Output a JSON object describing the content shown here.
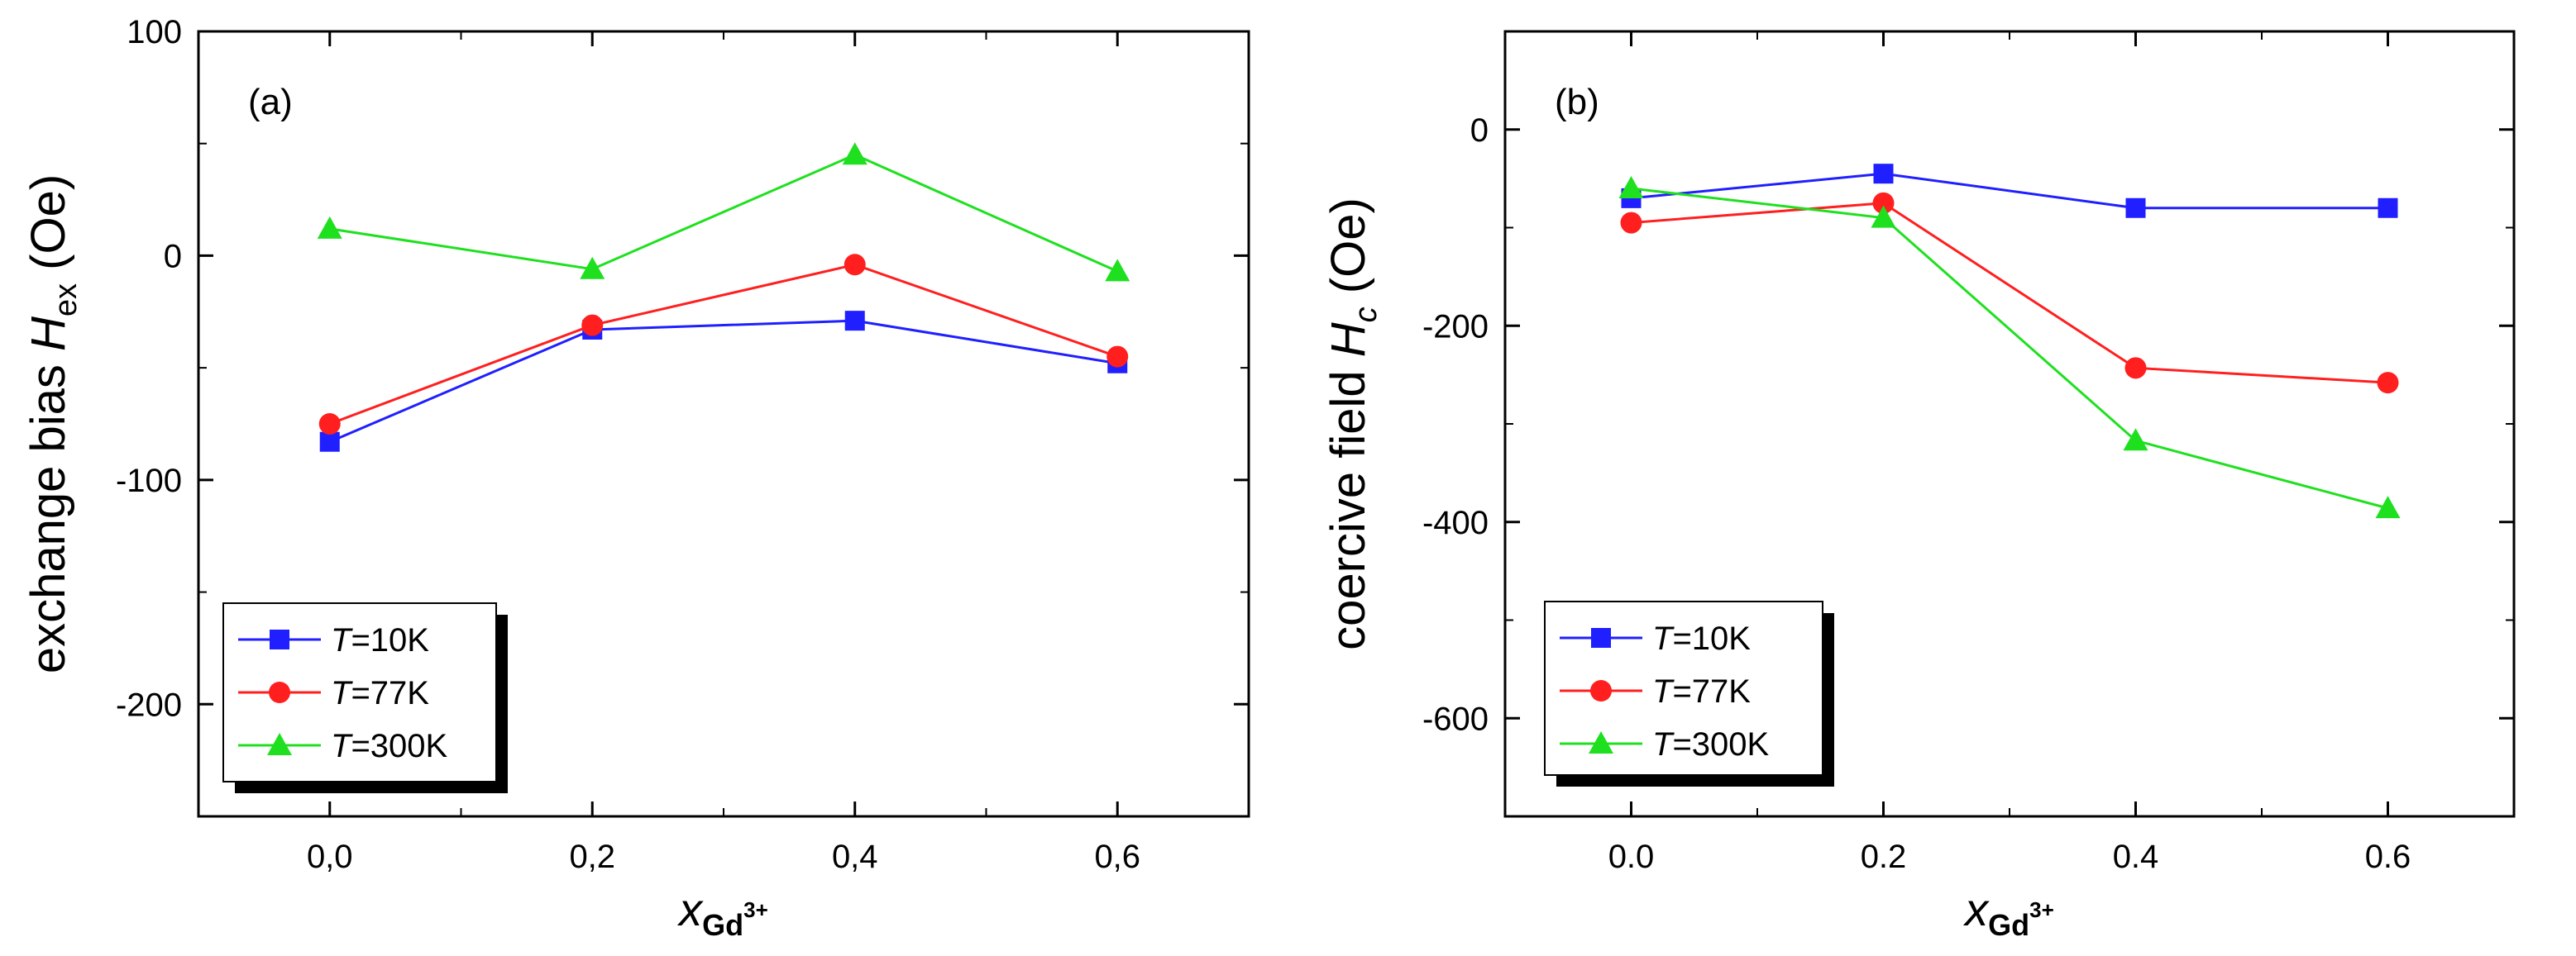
{
  "chart_data": [
    {
      "type": "line",
      "panel_label": "(a)",
      "ylabel_main": "exchange bias ",
      "ylabel_italic": "H",
      "ylabel_sub": "ex",
      "ylabel_unit": " (Oe)",
      "xlabel_main": "x",
      "xlabel_sub": "Gd",
      "xlabel_sup": "3+",
      "x_ticks": [
        "0,0",
        "0,2",
        "0,4",
        "0,6"
      ],
      "y_ticks": [
        "100",
        "0",
        "-100",
        "-200"
      ],
      "xlim": [
        -0.1,
        0.7
      ],
      "ylim": [
        -250,
        100
      ],
      "grid": false,
      "legend_position": "bottom-left",
      "x": [
        0.0,
        0.2,
        0.4,
        0.6
      ],
      "series": [
        {
          "name_italic": "T",
          "name_rest": "=10K",
          "color": "#1f1fff",
          "marker": "square",
          "values": [
            -83,
            -33,
            -29,
            -48
          ]
        },
        {
          "name_italic": "T",
          "name_rest": "=77K",
          "color": "#ff1f1f",
          "marker": "circle",
          "values": [
            -75,
            -31,
            -4,
            -45
          ]
        },
        {
          "name_italic": "T",
          "name_rest": "=300K",
          "color": "#1fe01f",
          "marker": "triangle",
          "values": [
            12,
            -6,
            45,
            -7
          ]
        }
      ]
    },
    {
      "type": "line",
      "panel_label": "(b)",
      "ylabel_main": "coercive field ",
      "ylabel_italic": "H",
      "ylabel_sub": "c",
      "ylabel_unit": " (Oe)",
      "xlabel_main": "x",
      "xlabel_sub": "Gd",
      "xlabel_sup": "3+",
      "x_ticks": [
        "0.0",
        "0.2",
        "0.4",
        "0.6"
      ],
      "y_ticks": [
        "0",
        "-200",
        "-400",
        "-600"
      ],
      "xlim": [
        -0.1,
        0.7
      ],
      "ylim": [
        -700,
        100
      ],
      "grid": false,
      "legend_position": "bottom-left",
      "x": [
        0.0,
        0.2,
        0.4,
        0.6
      ],
      "series": [
        {
          "name_italic": "T",
          "name_rest": "=10K",
          "color": "#1f1fff",
          "marker": "square",
          "values": [
            -70,
            -45,
            -80,
            -80
          ]
        },
        {
          "name_italic": "T",
          "name_rest": "=77K",
          "color": "#ff1f1f",
          "marker": "circle",
          "values": [
            -95,
            -75,
            -243,
            -258
          ]
        },
        {
          "name_italic": "T",
          "name_rest": "=300K",
          "color": "#1fe01f",
          "marker": "triangle",
          "values": [
            -60,
            -90,
            -317,
            -386
          ]
        }
      ]
    }
  ]
}
